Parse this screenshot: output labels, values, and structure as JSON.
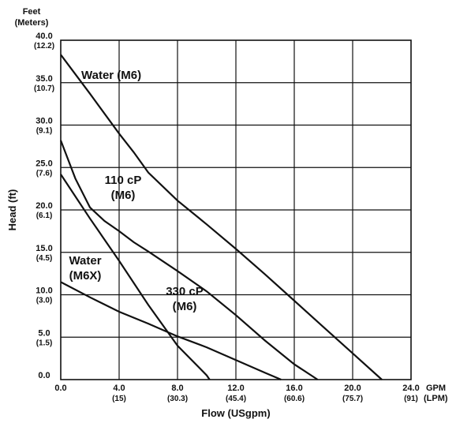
{
  "chart_data": {
    "type": "line",
    "xlabel": "Flow (USgpm)",
    "ylabel": "Head (ft)",
    "y_units_label": "Feet",
    "y_units_sub_label": "(Meters)",
    "x_units_label": "GPM",
    "x_units_sub_label": "(LPM)",
    "xlim": [
      0,
      24
    ],
    "ylim": [
      0,
      40
    ],
    "grid": true,
    "x_ticks": [
      {
        "value": 0,
        "label": "0.0",
        "sub": ""
      },
      {
        "value": 4,
        "label": "4.0",
        "sub": "(15)"
      },
      {
        "value": 8,
        "label": "8.0",
        "sub": "(30.3)"
      },
      {
        "value": 12,
        "label": "12.0",
        "sub": "(45.4)"
      },
      {
        "value": 16,
        "label": "16.0",
        "sub": "(60.6)"
      },
      {
        "value": 20,
        "label": "20.0",
        "sub": "(75.7)"
      },
      {
        "value": 24,
        "label": "24.0",
        "sub": "(91)"
      }
    ],
    "y_ticks": [
      {
        "value": 0,
        "label": "0.0",
        "sub": ""
      },
      {
        "value": 5,
        "label": "5.0",
        "sub": "(1.5)"
      },
      {
        "value": 10,
        "label": "10.0",
        "sub": "(3.0)"
      },
      {
        "value": 15,
        "label": "15.0",
        "sub": "(4.5)"
      },
      {
        "value": 20,
        "label": "20.0",
        "sub": "(6.1)"
      },
      {
        "value": 25,
        "label": "25.0",
        "sub": "(7.6)"
      },
      {
        "value": 30,
        "label": "30.0",
        "sub": "(9.1)"
      },
      {
        "value": 35,
        "label": "35.0",
        "sub": "(10.7)"
      },
      {
        "value": 40,
        "label": "40.0",
        "sub": "(12.2)"
      }
    ],
    "series": [
      {
        "label_lines": [
          "Water (M6)"
        ],
        "x": [
          0,
          2,
          4,
          5,
          6,
          8,
          10,
          12,
          14,
          16,
          18,
          20,
          22
        ],
        "y": [
          38.3,
          33.7,
          29.0,
          26.8,
          24.4,
          21.1,
          18.3,
          15.4,
          12.4,
          9.3,
          6.2,
          3.1,
          0.0
        ]
      },
      {
        "label_lines": [
          "110 cP",
          "(M6)"
        ],
        "x": [
          0,
          1,
          2,
          3,
          4,
          5,
          6,
          8,
          10,
          12,
          14,
          16,
          17.6
        ],
        "y": [
          28.2,
          23.7,
          20.3,
          18.7,
          17.5,
          16.2,
          15.1,
          12.8,
          10.4,
          7.6,
          4.6,
          1.8,
          0.0
        ]
      },
      {
        "label_lines": [
          "Water",
          "(M6X)"
        ],
        "x": [
          0,
          2,
          4,
          6,
          8,
          10,
          10.2
        ],
        "y": [
          24.2,
          19.0,
          14.0,
          8.8,
          4.0,
          0.5,
          0.0
        ]
      },
      {
        "label_lines": [
          "330 cP",
          "(M6)"
        ],
        "x": [
          0,
          2,
          4,
          6,
          8,
          10,
          12,
          14,
          15.1
        ],
        "y": [
          11.5,
          9.7,
          8.0,
          6.6,
          5.1,
          3.8,
          2.3,
          0.8,
          0.0
        ]
      }
    ]
  }
}
